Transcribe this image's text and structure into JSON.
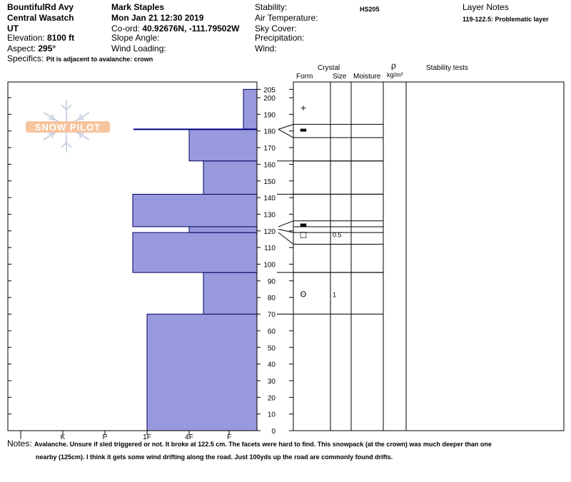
{
  "header": {
    "col1": {
      "location": "BountifulRd Avy",
      "region": "Central Wasatch",
      "state": "UT",
      "elevation_label": "Elevation:",
      "elevation_value": "8100 ft",
      "aspect_label": "Aspect:",
      "aspect_value": "295°",
      "specifics_label": "Specifics:",
      "specifics_value": "Pit is adjacent to avalanche: crown"
    },
    "col2": {
      "observer": "Mark Staples",
      "datetime": "Mon Jan 21 12:30 2019",
      "coord_label": "Co-ord:",
      "coord_value": "40.92676N, -111.79502W",
      "slope_label": "Slope Angle:",
      "wind_loading_label": "Wind Loading:"
    },
    "col3": {
      "stability_label": "Stability:",
      "air_temp_label": "Air Temperature:",
      "sky_label": "Sky Cover:",
      "precip_label": "Precipitation:",
      "wind_label": "Wind:",
      "hs": "HS205"
    },
    "col4": {
      "layer_notes_label": "Layer Notes",
      "layer_note": "119-122.5: Problematic layer"
    }
  },
  "table_header": {
    "crystal": "Crystal",
    "form": "Form",
    "size": "Size",
    "moisture": "Moisture",
    "rho": "ρ",
    "density_unit": "kg/m³",
    "stability_tests": "Stability tests"
  },
  "logo": {
    "text": "SNOW PILOT"
  },
  "notes": {
    "label": "Notes:",
    "line1": "Avalanche. Unsure if sled triggered or not. It broke at 122.5 cm. The facets were hard to find. This snowpack (at the crown) was much deeper than one",
    "line2": "nearby (125cm). I think it gets some wind drifting along the road. Just 100yds up the road are commonly found drifts."
  },
  "colors": {
    "fill": "#9999dd",
    "edge": "#000060",
    "crown_line": "#000080",
    "logo": "#f0b080"
  },
  "chart_data": {
    "type": "area",
    "title": "",
    "xlabel": "",
    "ylabel": "",
    "ylim": [
      0,
      205
    ],
    "hardness_ticks": [
      "I",
      "K",
      "P",
      "1F",
      "4F",
      "F"
    ],
    "depth_ticks": [
      0,
      10,
      20,
      30,
      40,
      50,
      60,
      70,
      80,
      90,
      100,
      110,
      120,
      130,
      140,
      150,
      160,
      170,
      180,
      190,
      200,
      205
    ],
    "layers": [
      {
        "bottom": 0,
        "top": 70,
        "hardness": "1F"
      },
      {
        "bottom": 70,
        "top": 95,
        "hardness": "4F-"
      },
      {
        "bottom": 95,
        "top": 119,
        "hardness": "1F+"
      },
      {
        "bottom": 119,
        "top": 122.5,
        "hardness": "4F"
      },
      {
        "bottom": 122.5,
        "top": 142,
        "hardness": "1F+"
      },
      {
        "bottom": 142,
        "top": 162,
        "hardness": "4F-"
      },
      {
        "bottom": 162,
        "top": 181,
        "hardness": "4F"
      },
      {
        "bottom": 181,
        "top": 205,
        "hardness": "F-"
      }
    ],
    "crown_depth": 181,
    "layer_lines": [
      0,
      70,
      95,
      112,
      119,
      122.5,
      126,
      142,
      162,
      176,
      181,
      205
    ],
    "crystal_rows": [
      {
        "depth": 194,
        "form": "+",
        "size": ""
      },
      {
        "depth": 181,
        "form": "▬",
        "size": ""
      },
      {
        "depth": 124,
        "form": "▬",
        "size": ""
      },
      {
        "depth": 118,
        "form": "□",
        "size": "0.5"
      },
      {
        "depth": 82,
        "form": "ʘ",
        "size": "1"
      }
    ]
  }
}
